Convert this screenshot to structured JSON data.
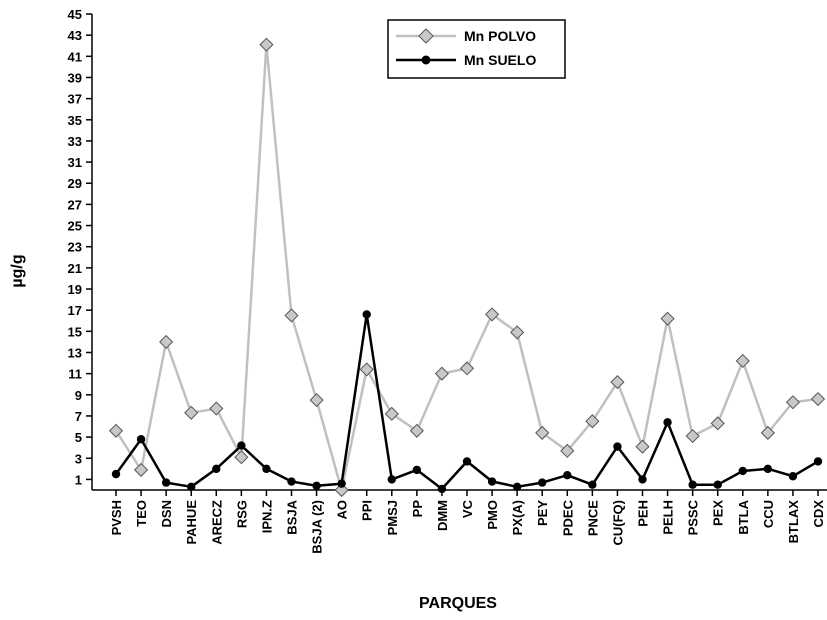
{
  "chart_data": {
    "type": "line",
    "title": "",
    "xlabel": "PARQUES",
    "ylabel": "µg/g",
    "ylim": [
      0,
      45
    ],
    "yticks": [
      1,
      3,
      5,
      7,
      9,
      11,
      13,
      15,
      17,
      19,
      21,
      23,
      25,
      27,
      29,
      31,
      33,
      35,
      37,
      39,
      41,
      43,
      45
    ],
    "grid": false,
    "legend_position": "top-center",
    "categories": [
      "PVSH",
      "TEO",
      "DSN",
      "PAHUE",
      "ARECZ",
      "RSG",
      "IPN.Z",
      "BSJA",
      "BSJA (2)",
      "AO",
      "PPI",
      "PMSJ",
      "PP",
      "DMM",
      "VC",
      "PMO",
      "PX(A)",
      "PEY",
      "PDEC",
      "PNCE",
      "CU(FQ)",
      "PEH",
      "PELH",
      "PSSC",
      "PEX",
      "BTLA",
      "CCU",
      "BTLAX",
      "CDX"
    ],
    "series": [
      {
        "name": "Mn POLVO",
        "color": "#c0c0c0",
        "marker": "diamond",
        "values": [
          5.6,
          1.9,
          14.0,
          7.3,
          7.7,
          3.1,
          42.1,
          16.5,
          8.5,
          0.0,
          11.4,
          7.2,
          5.6,
          11.0,
          11.5,
          16.6,
          14.9,
          5.4,
          3.7,
          6.5,
          10.2,
          4.1,
          16.2,
          5.1,
          6.3,
          12.2,
          5.4,
          8.3,
          8.6
        ]
      },
      {
        "name": "Mn SUELO",
        "color": "#000000",
        "marker": "circle",
        "values": [
          1.5,
          4.8,
          0.7,
          0.3,
          2.0,
          4.2,
          2.0,
          0.8,
          0.4,
          0.6,
          16.6,
          1.0,
          1.9,
          0.1,
          2.7,
          0.8,
          0.3,
          0.7,
          1.4,
          0.5,
          4.1,
          1.0,
          6.4,
          0.5,
          0.5,
          1.8,
          2.0,
          1.3,
          2.7
        ]
      }
    ]
  }
}
